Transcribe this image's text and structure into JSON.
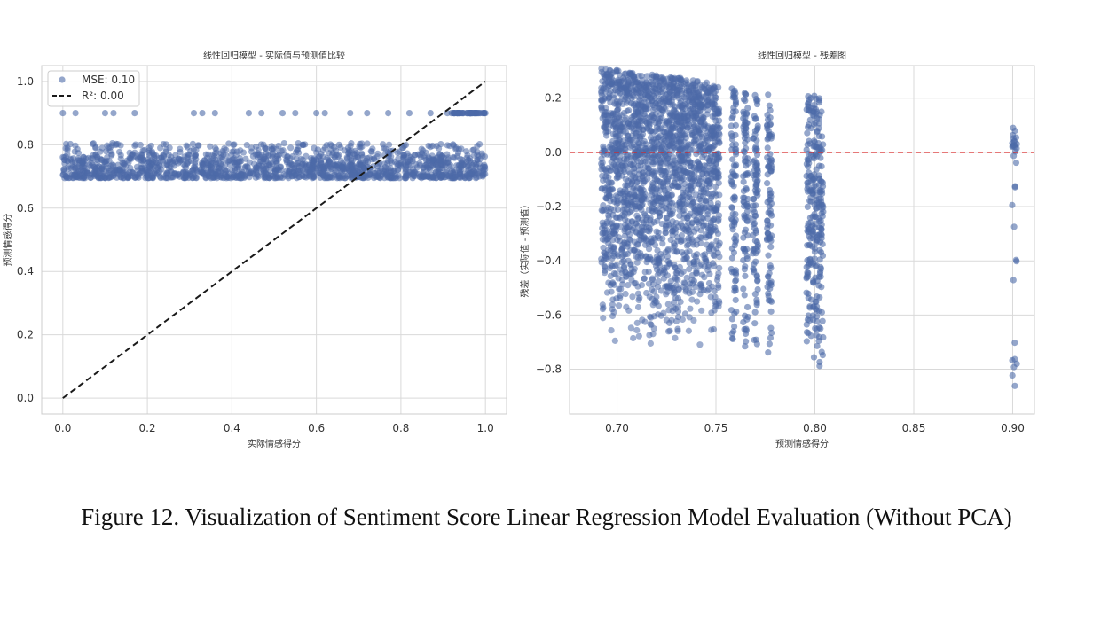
{
  "caption": "Figure 12. Visualization of Sentiment Score Linear Regression Model Evaluation (Without PCA)",
  "colors": {
    "point": "#4c6aa8",
    "reference_line": "#1a1a1a",
    "zero_line": "#d62728",
    "grid": "#d9d9d9",
    "frame": "#cccccc"
  },
  "chart_data": [
    {
      "type": "scatter",
      "title": "线性回归模型 - 实际值与预测值比较",
      "xlabel": "实际情感得分",
      "ylabel": "预测情感得分",
      "xlim": [
        -0.05,
        1.05
      ],
      "ylim": [
        -0.05,
        1.05
      ],
      "xticks": [
        0.0,
        0.2,
        0.4,
        0.6,
        0.8,
        1.0
      ],
      "yticks": [
        0.0,
        0.2,
        0.4,
        0.6,
        0.8,
        1.0
      ],
      "tick_labels_x": [
        "0.0",
        "0.2",
        "0.4",
        "0.6",
        "0.8",
        "1.0"
      ],
      "tick_labels_y": [
        "0.0",
        "0.2",
        "0.4",
        "0.6",
        "0.8",
        "1.0"
      ],
      "grid": true,
      "legend": {
        "position": "top-left",
        "entries": [
          "MSE: 0.10",
          "R²: 0.00"
        ]
      },
      "series": [
        {
          "name": "MSE: 0.10",
          "kind": "scatter",
          "description_range": {
            "x": [
              0.0,
              1.0
            ],
            "y_band": [
              0.69,
              0.805
            ]
          },
          "isolated_points": [
            {
              "x": 0.0,
              "y": 0.9
            },
            {
              "x": 0.03,
              "y": 0.9
            },
            {
              "x": 0.1,
              "y": 0.9
            },
            {
              "x": 0.12,
              "y": 0.9
            },
            {
              "x": 0.17,
              "y": 0.9
            },
            {
              "x": 0.31,
              "y": 0.9
            },
            {
              "x": 0.33,
              "y": 0.9
            },
            {
              "x": 0.36,
              "y": 0.9
            },
            {
              "x": 0.44,
              "y": 0.9
            },
            {
              "x": 0.47,
              "y": 0.9
            },
            {
              "x": 0.52,
              "y": 0.9
            },
            {
              "x": 0.55,
              "y": 0.9
            },
            {
              "x": 0.6,
              "y": 0.9
            },
            {
              "x": 0.62,
              "y": 0.9
            },
            {
              "x": 0.68,
              "y": 0.9
            },
            {
              "x": 0.72,
              "y": 0.9
            },
            {
              "x": 0.77,
              "y": 0.9
            },
            {
              "x": 0.82,
              "y": 0.9
            },
            {
              "x": 0.87,
              "y": 0.9
            },
            {
              "x": 0.91,
              "y": 0.9
            },
            {
              "x": 0.94,
              "y": 0.9
            },
            {
              "x": 0.97,
              "y": 0.9
            },
            {
              "x": 1.0,
              "y": 0.9
            }
          ]
        },
        {
          "name": "R²: 0.00",
          "kind": "line",
          "style": "dashed",
          "x": [
            0.0,
            1.0
          ],
          "y": [
            0.0,
            1.0
          ]
        }
      ]
    },
    {
      "type": "scatter",
      "title": "线性回归模型 - 残差图",
      "xlabel": "预测情感得分",
      "ylabel": "残差（实际值 - 预测值）",
      "xlim": [
        0.676,
        0.911
      ],
      "ylim": [
        -0.965,
        0.32
      ],
      "xticks": [
        0.7,
        0.75,
        0.8,
        0.85,
        0.9
      ],
      "yticks": [
        0.2,
        0.0,
        -0.2,
        -0.4,
        -0.6,
        -0.8
      ],
      "tick_labels_x": [
        "0.70",
        "0.75",
        "0.80",
        "0.85",
        "0.90"
      ],
      "tick_labels_y": [
        "0.2",
        "0.0",
        "−0.2",
        "−0.4",
        "−0.6",
        "−0.8"
      ],
      "grid": true,
      "reference_line": {
        "y": 0.0,
        "style": "dashed"
      },
      "clusters": [
        {
          "x_range": [
            0.692,
            0.752
          ],
          "y_range": [
            -0.75,
            0.31
          ],
          "density": "very high"
        },
        {
          "x": 0.759,
          "y_range": [
            -0.77,
            0.24
          ]
        },
        {
          "x": 0.765,
          "y_range": [
            -0.76,
            0.24
          ]
        },
        {
          "x": 0.77,
          "y_range": [
            -0.78,
            0.23
          ]
        },
        {
          "x": 0.777,
          "y_range": [
            -0.77,
            0.22
          ]
        },
        {
          "x": 0.797,
          "y_range": [
            -0.8,
            0.21
          ]
        },
        {
          "x": 0.8,
          "y_range": [
            -0.8,
            0.21
          ]
        },
        {
          "x": 0.803,
          "y_range": [
            -0.8,
            0.2
          ]
        },
        {
          "x": 0.901,
          "y_range": [
            -0.9,
            0.1
          ]
        }
      ]
    }
  ]
}
